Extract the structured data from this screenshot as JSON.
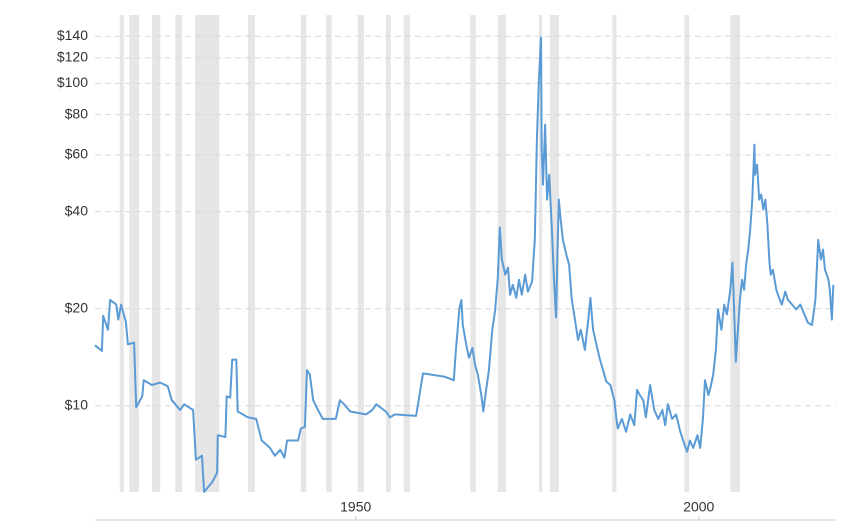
{
  "chart_data": {
    "type": "line",
    "color": "#5b9bd5",
    "log_scale": true,
    "grid": true,
    "recession_color": "#e6e6e6",
    "xlim": [
      1912,
      2020
    ],
    "xticks": [
      1950,
      2000
    ],
    "ylim": [
      5.4,
      163
    ],
    "yticks": [
      {
        "value": 10,
        "label": "$10"
      },
      {
        "value": 20,
        "label": "$20"
      },
      {
        "value": 40,
        "label": "$40"
      },
      {
        "value": 60,
        "label": "$60"
      },
      {
        "value": 80,
        "label": "$80"
      },
      {
        "value": 100,
        "label": "$100"
      },
      {
        "value": 120,
        "label": "$120"
      },
      {
        "value": 140,
        "label": "$140"
      }
    ],
    "recessions": [
      [
        1915.6,
        1916.2
      ],
      [
        1917.0,
        1918.4
      ],
      [
        1920.3,
        1921.5
      ],
      [
        1923.7,
        1924.7
      ],
      [
        1926.6,
        1930.1
      ],
      [
        1934.3,
        1935.3
      ],
      [
        1942.0,
        1942.8
      ],
      [
        1945.7,
        1946.5
      ],
      [
        1950.3,
        1951.2
      ],
      [
        1954.4,
        1955.1
      ],
      [
        1957.0,
        1957.9
      ],
      [
        1966.7,
        1967.5
      ],
      [
        1970.7,
        1971.9
      ],
      [
        1976.7,
        1977.2
      ],
      [
        1978.3,
        1979.6
      ],
      [
        1987.4,
        1988.0
      ],
      [
        1997.9,
        1998.6
      ],
      [
        2004.6,
        2006.0
      ]
    ],
    "x": [
      1912.0,
      1913.0,
      1913.2,
      1913.9,
      1914.2,
      1915.1,
      1915.4,
      1915.8,
      1916.5,
      1916.8,
      1917.7,
      1918.0,
      1918.9,
      1919.1,
      1920.3,
      1921.5,
      1922.6,
      1923.2,
      1924.4,
      1925.0,
      1926.3,
      1926.7,
      1927.6,
      1927.9,
      1929.1,
      1929.8,
      1929.9,
      1931.0,
      1931.2,
      1931.7,
      1932.0,
      1932.6,
      1932.8,
      1934.3,
      1935.5,
      1936.3,
      1937.5,
      1938.2,
      1939.0,
      1939.6,
      1940.0,
      1941.6,
      1942.0,
      1942.6,
      1942.9,
      1943.3,
      1943.8,
      1944.5,
      1945.2,
      1947.1,
      1947.7,
      1948.3,
      1949.2,
      1951.5,
      1952.4,
      1953.0,
      1954.4,
      1955.0,
      1955.7,
      1958.8,
      1959.8,
      1963.0,
      1964.3,
      1964.6,
      1965.1,
      1965.4,
      1965.6,
      1966.1,
      1966.5,
      1967.0,
      1967.4,
      1967.8,
      1968.3,
      1968.6,
      1969.0,
      1969.4,
      1969.9,
      1970.3,
      1970.7,
      1971.0,
      1971.3,
      1971.8,
      1972.2,
      1972.5,
      1972.9,
      1973.4,
      1973.8,
      1974.2,
      1974.7,
      1975.1,
      1975.7,
      1976.1,
      1976.4,
      1976.7,
      1977.0,
      1977.1,
      1977.3,
      1977.6,
      1977.9,
      1978.2,
      1978.6,
      1978.9,
      1979.2,
      1979.4,
      1979.6,
      1979.9,
      1980.2,
      1980.7,
      1981.1,
      1981.5,
      1982.0,
      1982.4,
      1982.8,
      1983.4,
      1983.9,
      1984.2,
      1984.6,
      1985.2,
      1985.6,
      1986.1,
      1986.5,
      1987.1,
      1987.7,
      1988.0,
      1988.2,
      1988.8,
      1989.4,
      1990.0,
      1990.6,
      1991.0,
      1991.4,
      1991.9,
      1992.3,
      1992.9,
      1993.5,
      1994.1,
      1994.7,
      1995.1,
      1995.5,
      1996.1,
      1996.7,
      1997.3,
      1997.9,
      1998.3,
      1998.7,
      1999.2,
      1999.8,
      2000.2,
      2000.6,
      2000.9,
      2001.4,
      2001.8,
      2002.1,
      2002.5,
      2002.8,
      2003.3,
      2003.7,
      2004.1,
      2004.6,
      2004.9,
      2005.1,
      2005.4,
      2005.7,
      2006.0,
      2006.3,
      2006.6,
      2006.9,
      2007.2,
      2007.5,
      2007.8,
      2008.1,
      2008.2,
      2008.5,
      2008.8,
      2009.1,
      2009.4,
      2009.7,
      2010.0,
      2010.3,
      2010.5,
      2010.8,
      2011.3,
      2011.7,
      2012.1,
      2012.6,
      2013.0,
      2013.6,
      2014.2,
      2014.8,
      2015.4,
      2015.9,
      2016.5,
      2017.0,
      2017.4,
      2017.8,
      2018.1,
      2018.4,
      2018.9,
      2019.1,
      2019.4,
      2019.6
    ],
    "values": [
      15.4,
      14.8,
      19.0,
      17.2,
      21.3,
      20.6,
      18.5,
      20.6,
      18.2,
      15.5,
      15.7,
      9.9,
      10.7,
      12.0,
      11.6,
      11.8,
      11.5,
      10.4,
      9.7,
      10.1,
      9.7,
      6.8,
      7.0,
      5.4,
      5.8,
      6.2,
      8.1,
      8.0,
      10.7,
      10.6,
      13.9,
      13.9,
      9.6,
      9.2,
      9.1,
      7.8,
      7.4,
      7.0,
      7.3,
      6.9,
      7.8,
      7.8,
      8.5,
      8.6,
      12.9,
      12.5,
      10.4,
      9.7,
      9.1,
      9.1,
      10.4,
      10.1,
      9.6,
      9.4,
      9.7,
      10.1,
      9.6,
      9.2,
      9.4,
      9.3,
      12.6,
      12.3,
      12.0,
      14.9,
      19.9,
      21.3,
      17.8,
      15.5,
      14.1,
      15.1,
      13.4,
      12.5,
      10.8,
      9.6,
      11.2,
      12.8,
      17.2,
      19.6,
      24.6,
      35.7,
      28.4,
      25.5,
      26.8,
      22.1,
      23.7,
      21.6,
      24.6,
      22.1,
      25.5,
      22.6,
      24.3,
      32.7,
      66.9,
      102.7,
      138.7,
      62.3,
      48.5,
      74.5,
      43.6,
      52.1,
      35.2,
      24.6,
      18.8,
      29.4,
      43.6,
      37.2,
      32.7,
      29.4,
      27.4,
      21.3,
      18.2,
      16.0,
      17.2,
      14.9,
      18.5,
      21.6,
      17.2,
      15.1,
      13.9,
      12.8,
      11.9,
      11.6,
      10.4,
      9.1,
      8.5,
      9.1,
      8.3,
      9.4,
      8.7,
      11.2,
      10.8,
      10.4,
      9.2,
      11.6,
      9.7,
      9.1,
      9.7,
      8.7,
      10.1,
      9.1,
      9.4,
      8.3,
      7.6,
      7.2,
      7.8,
      7.4,
      8.1,
      7.4,
      9.1,
      12.0,
      10.8,
      11.6,
      12.5,
      14.9,
      19.9,
      17.2,
      20.6,
      19.2,
      22.9,
      27.8,
      21.3,
      13.7,
      17.2,
      21.3,
      24.6,
      22.9,
      27.4,
      30.5,
      35.2,
      43.6,
      64.6,
      52.1,
      56.0,
      43.6,
      45.2,
      40.6,
      43.6,
      36.5,
      28.0,
      25.5,
      26.4,
      22.9,
      21.6,
      20.6,
      22.6,
      21.3,
      20.6,
      19.9,
      20.6,
      19.2,
      18.1,
      17.8,
      21.3,
      32.7,
      28.4,
      30.5,
      26.4,
      24.6,
      22.9,
      18.5,
      23.7
    ]
  }
}
